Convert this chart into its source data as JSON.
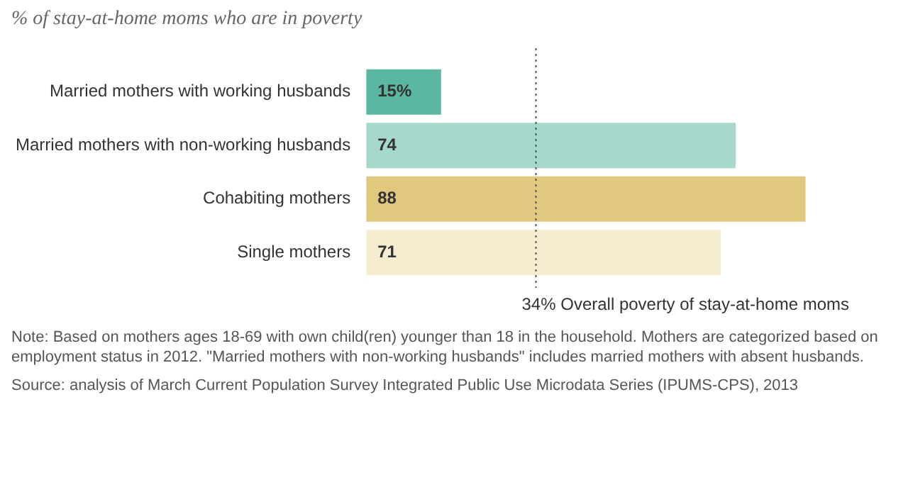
{
  "chart_data": {
    "type": "bar",
    "orientation": "horizontal",
    "title": "% of stay-at-home moms who are in poverty",
    "categories": [
      "Married mothers with working husbands",
      "Married mothers with non-working husbands",
      "Cohabiting mothers",
      "Single mothers"
    ],
    "values": [
      15,
      74,
      88,
      71
    ],
    "colors": [
      "#5bb6a2",
      "#a6d8cb",
      "#e0c97e",
      "#f6edd1"
    ],
    "value_labels": [
      "15%",
      "74",
      "88",
      "71"
    ],
    "tick_labels": "y",
    "ref_lines": [
      {
        "axis": "x",
        "value": 34,
        "label": "34% Overall poverty of stay-at-home moms",
        "color": "#555555",
        "line_style": "dotted"
      }
    ],
    "annotations": [
      "Note: Based on mothers ages 18-69 with own child(ren) younger than 18 in the household. Mothers are categorized based on employment status in 2012. \"Married mothers with non-working husbands\" includes married mothers with absent husbands.",
      "Source: analysis of March Current Population Survey Integrated Public Use Microdata Series (IPUMS-CPS), 2013"
    ]
  }
}
